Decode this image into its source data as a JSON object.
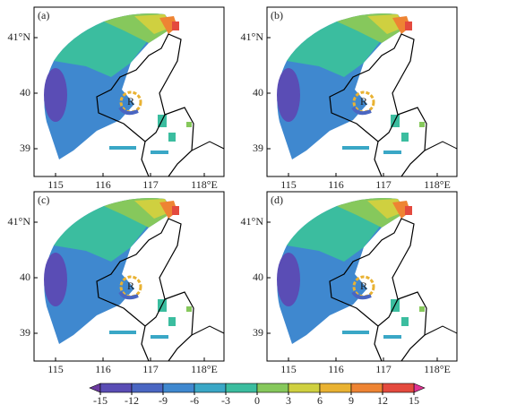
{
  "panels": [
    {
      "label": "(a)"
    },
    {
      "label": "(b)"
    },
    {
      "label": "(c)"
    },
    {
      "label": "(d)"
    }
  ],
  "x_ticks": [
    "115",
    "116",
    "117",
    "118°E"
  ],
  "y_ticks": [
    "41°N",
    "40",
    "39"
  ],
  "radar_label": "R",
  "colorbar": {
    "ticks": [
      -15,
      -12,
      -9,
      -6,
      -3,
      0,
      3,
      6,
      9,
      12,
      15
    ],
    "colors": [
      "#6b3aa0",
      "#5a4db5",
      "#4a66c2",
      "#3f88cf",
      "#3aa7c6",
      "#3bbd9f",
      "#86c85c",
      "#cfd040",
      "#e9b232",
      "#ee8433",
      "#e44a3e",
      "#e03392"
    ]
  }
}
